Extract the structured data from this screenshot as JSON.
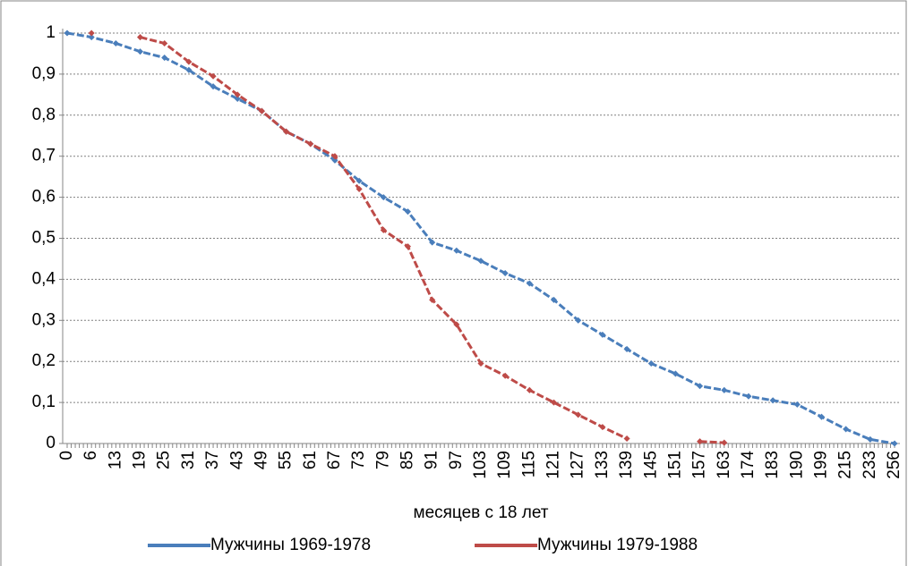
{
  "chart_data": {
    "type": "line",
    "x_label": "месяцев с 18 лет",
    "categories": [
      "0",
      "6",
      "13",
      "19",
      "25",
      "31",
      "37",
      "43",
      "49",
      "55",
      "61",
      "67",
      "73",
      "79",
      "85",
      "91",
      "97",
      "103",
      "109",
      "115",
      "121",
      "127",
      "133",
      "139",
      "145",
      "151",
      "157",
      "163",
      "174",
      "183",
      "190",
      "199",
      "215",
      "233",
      "256"
    ],
    "series": [
      {
        "name": "Мужчины 1969-1978",
        "color": "#4a7ebb",
        "values": [
          1.0,
          0.99,
          0.975,
          0.955,
          0.94,
          0.91,
          0.87,
          0.84,
          0.81,
          0.76,
          0.73,
          0.69,
          0.64,
          0.6,
          0.565,
          0.49,
          0.47,
          0.445,
          0.415,
          0.39,
          0.35,
          0.3,
          0.265,
          0.23,
          0.195,
          0.17,
          0.14,
          0.13,
          0.115,
          0.105,
          0.095,
          0.065,
          0.035,
          0.01,
          0.0
        ]
      },
      {
        "name": "Мужчины 1979-1988",
        "color": "#be4b48",
        "values": [
          null,
          1.0,
          null,
          0.99,
          0.975,
          0.93,
          0.895,
          0.85,
          0.81,
          0.76,
          0.73,
          0.7,
          0.62,
          0.52,
          0.48,
          0.35,
          0.29,
          0.195,
          0.165,
          0.13,
          0.1,
          0.07,
          0.04,
          0.012,
          null,
          null,
          0.005,
          0.002,
          null,
          null,
          null,
          null,
          null,
          null,
          null
        ]
      }
    ],
    "ylim": [
      0,
      1
    ],
    "yticks": [
      0,
      {
        "value": 0.1,
        "label": "0,1"
      },
      {
        "value": 0.2,
        "label": "0,2"
      },
      {
        "value": 0.3,
        "label": "0,3"
      },
      {
        "value": 0.4,
        "label": "0,4"
      },
      {
        "value": 0.5,
        "label": "0,5"
      },
      {
        "value": 0.6,
        "label": "0,6"
      },
      {
        "value": 0.7,
        "label": "0,7"
      },
      {
        "value": 0.8,
        "label": "0,8"
      },
      {
        "value": 0.9,
        "label": "0,9"
      },
      1
    ],
    "grid": true,
    "legend": "bottom"
  }
}
